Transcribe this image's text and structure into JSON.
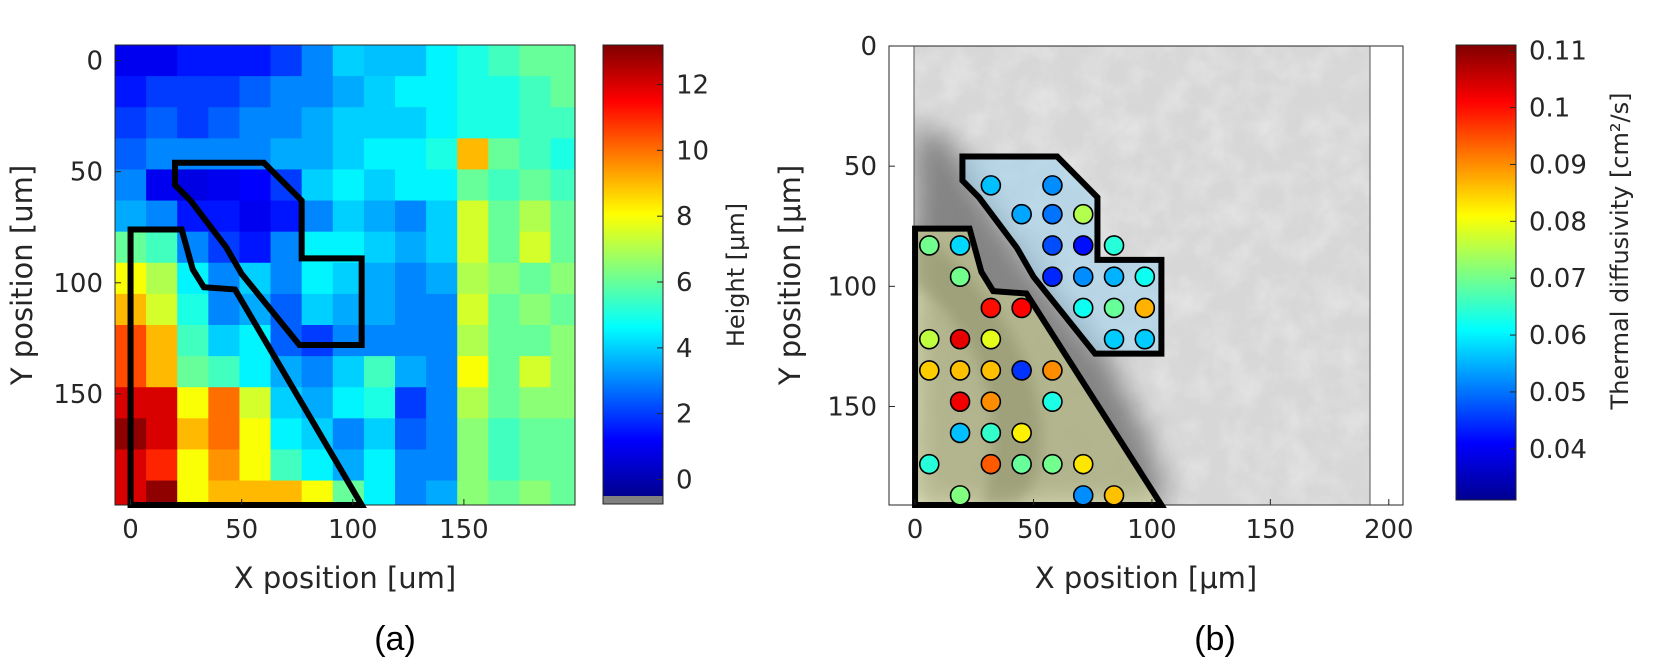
{
  "colors": {
    "jet": [
      "#00008f",
      "#0000ff",
      "#0080ff",
      "#00ffff",
      "#80ff80",
      "#ffff00",
      "#ff8000",
      "#ff0000",
      "#800000"
    ],
    "outline": "#000000",
    "nan": "#808080"
  },
  "chart_data": [
    {
      "panel": "(a)",
      "type": "heatmap",
      "xlabel": "X position [um]",
      "ylabel": "Y position [um]",
      "xticks": [
        "0",
        "50",
        "100",
        "150"
      ],
      "yticks": [
        "0",
        "50",
        "100",
        "150"
      ],
      "xlim": [
        -7,
        200
      ],
      "ylim": [
        -7,
        200
      ],
      "cell_size": 14,
      "colorbar": {
        "label": "Height [μm]",
        "clim": [
          -0.5,
          13.2
        ],
        "ticks": [
          "0",
          "2",
          "4",
          "6",
          "8",
          "10",
          "12"
        ],
        "nan_below": true
      },
      "heights": [
        [
          1.0,
          1.0,
          1.5,
          1.5,
          1.5,
          2.0,
          3.0,
          4.0,
          3.8,
          3.8,
          4.5,
          5.0,
          5.5,
          6.0,
          6.0
        ],
        [
          1.5,
          2.0,
          2.0,
          2.0,
          2.5,
          3.0,
          3.0,
          3.5,
          4.0,
          4.5,
          4.5,
          5.0,
          5.0,
          5.5,
          6.0
        ],
        [
          2.0,
          2.5,
          2.0,
          2.5,
          3.0,
          3.0,
          3.5,
          4.0,
          4.0,
          4.0,
          4.5,
          5.0,
          5.0,
          5.5,
          5.5
        ],
        [
          2.5,
          3.0,
          3.0,
          3.0,
          3.0,
          3.5,
          3.5,
          4.0,
          4.5,
          4.5,
          5.0,
          9.0,
          6.0,
          5.5,
          5.0
        ],
        [
          3.0,
          1.0,
          0.8,
          1.0,
          1.2,
          2.0,
          4.0,
          4.5,
          4.0,
          4.5,
          4.5,
          6.0,
          5.5,
          6.0,
          5.5
        ],
        [
          3.5,
          3.0,
          1.5,
          1.5,
          1.0,
          1.5,
          3.0,
          4.0,
          3.5,
          3.0,
          4.0,
          7.5,
          6.0,
          7.0,
          6.0
        ],
        [
          6.0,
          5.5,
          3.0,
          2.0,
          1.5,
          3.0,
          4.5,
          4.5,
          4.0,
          3.5,
          4.0,
          7.5,
          6.0,
          7.5,
          6.0
        ],
        [
          8.0,
          7.0,
          4.5,
          3.0,
          4.0,
          3.0,
          4.5,
          4.0,
          3.5,
          3.0,
          3.5,
          7.0,
          6.5,
          6.0,
          6.5
        ],
        [
          9.0,
          7.5,
          5.0,
          3.0,
          3.5,
          2.5,
          4.0,
          3.5,
          3.5,
          3.0,
          3.0,
          7.5,
          6.0,
          6.5,
          6.0
        ],
        [
          10.5,
          9.0,
          5.5,
          4.0,
          4.5,
          2.5,
          2.0,
          3.0,
          3.0,
          3.0,
          3.0,
          7.0,
          6.0,
          6.0,
          6.5
        ],
        [
          10.5,
          9.0,
          6.0,
          5.5,
          4.5,
          3.5,
          3.0,
          4.0,
          5.5,
          3.5,
          3.0,
          8.0,
          6.0,
          7.5,
          6.5
        ],
        [
          12.0,
          12.0,
          8.0,
          10.0,
          7.5,
          4.0,
          3.5,
          4.5,
          5.0,
          2.0,
          3.0,
          7.0,
          6.0,
          6.5,
          6.5
        ],
        [
          13.0,
          12.0,
          9.0,
          10.0,
          8.0,
          4.5,
          4.0,
          3.0,
          4.0,
          2.5,
          3.0,
          6.5,
          5.5,
          6.0,
          6.0
        ],
        [
          12.0,
          11.0,
          8.0,
          9.5,
          8.0,
          5.5,
          4.5,
          3.5,
          4.5,
          3.0,
          3.0,
          6.5,
          5.5,
          6.0,
          6.0
        ],
        [
          12.0,
          13.0,
          8.0,
          9.0,
          9.0,
          9.0,
          8.0,
          6.0,
          4.5,
          3.0,
          3.5,
          6.5,
          6.0,
          6.5,
          6.0
        ]
      ]
    },
    {
      "panel": "(b)",
      "type": "scatter",
      "xlabel": "X position [μm]",
      "ylabel": "Y position [μm]",
      "xticks": [
        "0",
        "50",
        "100",
        "150",
        "200"
      ],
      "yticks": [
        "0",
        "50",
        "100",
        "150"
      ],
      "xlim": [
        -11,
        206
      ],
      "ylim": [
        0,
        191
      ],
      "colorbar": {
        "label": "Thermal diffusivity [cm²/s]",
        "clim": [
          0.031,
          0.111
        ],
        "ticks": [
          "0.04",
          "0.05",
          "0.06",
          "0.07",
          "0.08",
          "0.09",
          "0.1",
          "0.11"
        ]
      },
      "points": [
        [
          32,
          58,
          0.056
        ],
        [
          58,
          58,
          0.052
        ],
        [
          45,
          70,
          0.054
        ],
        [
          58,
          70,
          0.05
        ],
        [
          71,
          70,
          0.075
        ],
        [
          58,
          83,
          0.047
        ],
        [
          71,
          83,
          0.042
        ],
        [
          84,
          83,
          0.064
        ],
        [
          58,
          96,
          0.044
        ],
        [
          71,
          96,
          0.052
        ],
        [
          84,
          96,
          0.055
        ],
        [
          97,
          96,
          0.062
        ],
        [
          71,
          109,
          0.062
        ],
        [
          84,
          109,
          0.069
        ],
        [
          97,
          109,
          0.087
        ],
        [
          84,
          122,
          0.057
        ],
        [
          97,
          122,
          0.057
        ],
        [
          6,
          83,
          0.07
        ],
        [
          19,
          83,
          0.058
        ],
        [
          19,
          96,
          0.07
        ],
        [
          32,
          109,
          0.1
        ],
        [
          45,
          109,
          0.101
        ],
        [
          6,
          122,
          0.076
        ],
        [
          19,
          122,
          0.103
        ],
        [
          32,
          122,
          0.079
        ],
        [
          6,
          135,
          0.085
        ],
        [
          19,
          135,
          0.086
        ],
        [
          32,
          135,
          0.086
        ],
        [
          45,
          135,
          0.045
        ],
        [
          58,
          135,
          0.09
        ],
        [
          19,
          148,
          0.102
        ],
        [
          32,
          148,
          0.09
        ],
        [
          58,
          148,
          0.063
        ],
        [
          19,
          161,
          0.056
        ],
        [
          32,
          161,
          0.065
        ],
        [
          45,
          161,
          0.082
        ],
        [
          6,
          174,
          0.064
        ],
        [
          32,
          174,
          0.094
        ],
        [
          45,
          174,
          0.069
        ],
        [
          58,
          174,
          0.07
        ],
        [
          71,
          174,
          0.083
        ],
        [
          19,
          187,
          0.071
        ],
        [
          71,
          187,
          0.052
        ],
        [
          84,
          187,
          0.086
        ]
      ]
    }
  ],
  "regions": {
    "upper": [
      [
        20,
        46
      ],
      [
        60,
        46
      ],
      [
        77,
        63
      ],
      [
        77,
        89
      ],
      [
        104,
        89
      ],
      [
        104,
        128
      ],
      [
        76,
        128
      ],
      [
        50,
        96
      ],
      [
        43,
        84
      ],
      [
        27,
        63
      ],
      [
        20,
        56
      ]
    ],
    "lower": [
      [
        0,
        76
      ],
      [
        23,
        76
      ],
      [
        28,
        94
      ],
      [
        33,
        102
      ],
      [
        47,
        103
      ],
      [
        104,
        200
      ],
      [
        0,
        200
      ]
    ]
  },
  "captions": {
    "a": "(a)",
    "b": "(b)"
  }
}
